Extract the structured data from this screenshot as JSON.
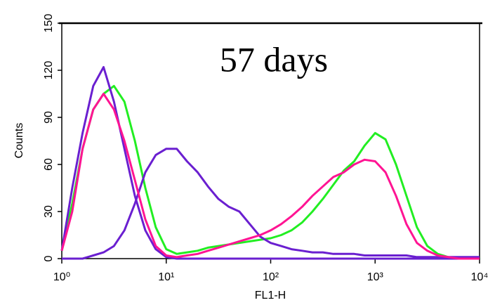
{
  "chart_data": {
    "type": "line",
    "title": "57 days",
    "x_label": "FL1-H",
    "y_label": "Counts",
    "xscale": "log",
    "xlim": [
      1,
      10000
    ],
    "ylim": [
      0,
      150
    ],
    "xticks": [
      {
        "value": 1,
        "label": "10⁰"
      },
      {
        "value": 10,
        "label": "10¹"
      },
      {
        "value": 100,
        "label": "10²"
      },
      {
        "value": 1000,
        "label": "10³"
      },
      {
        "value": 10000,
        "label": "10⁴"
      }
    ],
    "yticks": [
      0,
      30,
      60,
      90,
      120,
      150
    ],
    "x": [
      1,
      1.26,
      1.58,
      2,
      2.51,
      3.16,
      3.98,
      5.01,
      6.31,
      7.94,
      10,
      12.6,
      15.8,
      20,
      25.1,
      31.6,
      39.8,
      50.1,
      63.1,
      79.4,
      100,
      126,
      158,
      200,
      251,
      316,
      398,
      501,
      631,
      794,
      1000,
      1259,
      1585,
      1995,
      2512,
      3162,
      3981,
      5012,
      6310,
      7943,
      10000
    ],
    "series": [
      {
        "color": "#22ee22",
        "values": [
          5,
          35,
          70,
          95,
          105,
          110,
          100,
          75,
          45,
          20,
          6,
          3,
          4,
          5,
          7,
          8,
          9,
          10,
          11,
          12,
          13,
          15,
          18,
          23,
          30,
          38,
          47,
          56,
          62,
          72,
          80,
          76,
          60,
          40,
          20,
          8,
          3,
          1,
          0,
          0,
          0
        ]
      },
      {
        "color": "#6a1fd0",
        "values": [
          5,
          45,
          80,
          110,
          122,
          100,
          70,
          40,
          18,
          6,
          1,
          0,
          0,
          0,
          0,
          0,
          0,
          0,
          0,
          0,
          0,
          0,
          0,
          0,
          0,
          0,
          0,
          0,
          0,
          0,
          0,
          0,
          0,
          0,
          0,
          0,
          0,
          0,
          0,
          0,
          0
        ]
      },
      {
        "color": "#6a1fd0",
        "values": [
          0,
          0,
          0,
          2,
          4,
          8,
          18,
          35,
          55,
          66,
          70,
          70,
          62,
          55,
          46,
          38,
          33,
          30,
          22,
          14,
          10,
          8,
          6,
          5,
          4,
          4,
          3,
          3,
          3,
          2,
          2,
          2,
          2,
          2,
          1,
          1,
          1,
          1,
          1,
          1,
          1
        ]
      },
      {
        "color": "#ff1493",
        "values": [
          5,
          30,
          70,
          95,
          105,
          95,
          75,
          50,
          25,
          8,
          2,
          1,
          2,
          3,
          5,
          7,
          9,
          11,
          13,
          15,
          18,
          22,
          27,
          33,
          40,
          46,
          52,
          55,
          60,
          63,
          62,
          55,
          40,
          22,
          10,
          5,
          2,
          1,
          0,
          0,
          0
        ]
      }
    ]
  }
}
